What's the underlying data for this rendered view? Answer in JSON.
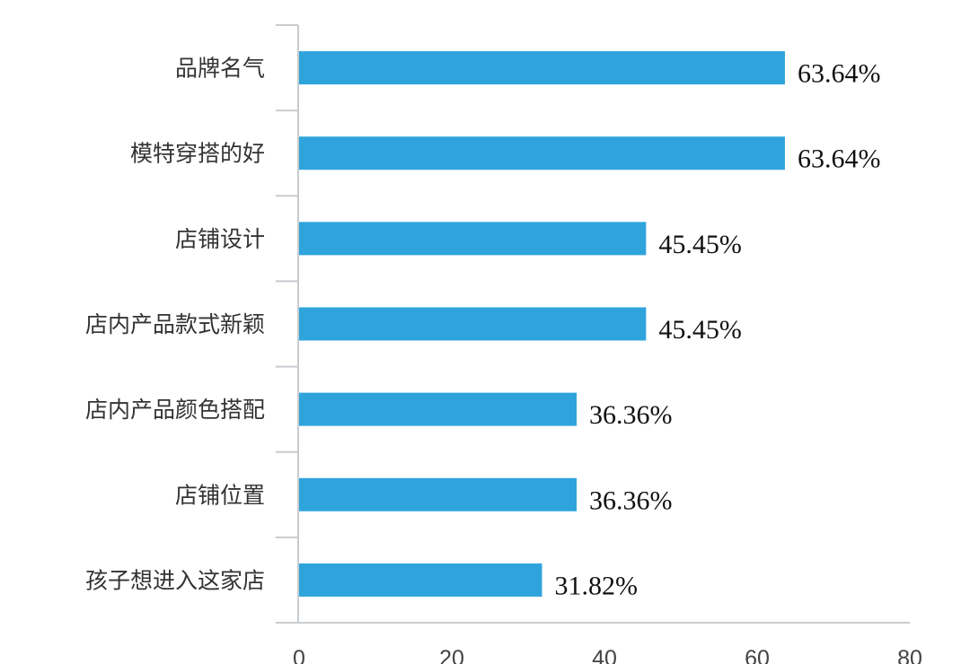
{
  "chart_data": {
    "type": "bar",
    "orientation": "horizontal",
    "categories": [
      "品牌名气",
      "模特穿搭的好",
      "店铺设计",
      "店内产品款式新颖",
      "店内产品颜色搭配",
      "店铺位置",
      "孩子想进入这家店"
    ],
    "values": [
      63.64,
      63.64,
      45.45,
      45.45,
      36.36,
      36.36,
      31.82
    ],
    "value_labels": [
      "63.64%",
      "63.64%",
      "45.45%",
      "45.45%",
      "36.36%",
      "36.36%",
      "31.82%"
    ],
    "xlim": [
      0,
      80
    ],
    "xticks": [
      0,
      20,
      40,
      60,
      80
    ],
    "xtick_labels": [
      "0",
      "20",
      "40",
      "60",
      "80"
    ],
    "bar_color": "#2fa4dc",
    "grid": false,
    "legend": "none"
  }
}
